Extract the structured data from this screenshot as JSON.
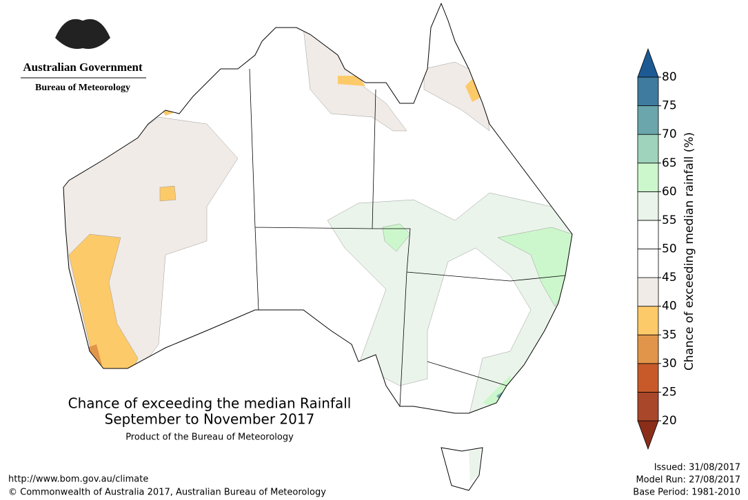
{
  "logo": {
    "line1": "Australian Government",
    "line2": "Bureau of Meteorology"
  },
  "title": "Chance of exceeding the median Rainfall",
  "subtitle": "September to November 2017",
  "credit": "Product of the Bureau of Meteorology",
  "url": "http://www.bom.gov.au/climate",
  "copyright": "© Commonwealth of Australia 2017, Australian Bureau of Meteorology",
  "issued": "Issued: 31/08/2017",
  "model_run": "Model Run: 27/08/2017",
  "base_period": "Base Period: 1981-2010",
  "legend": {
    "label": "Chance of exceeding median rainfall (%)",
    "ticks": [
      20,
      25,
      30,
      35,
      40,
      45,
      50,
      55,
      60,
      65,
      70,
      75,
      80
    ],
    "colors": [
      "#8a2e1a",
      "#a8472a",
      "#c85a2a",
      "#e0954a",
      "#fdca6a",
      "#f0ebe6",
      "#ffffff",
      "#ffffff",
      "#eaf4ea",
      "#ccf7cc",
      "#9fd3bc",
      "#6aa6ac",
      "#3f7b9e",
      "#1d5a94"
    ]
  }
}
